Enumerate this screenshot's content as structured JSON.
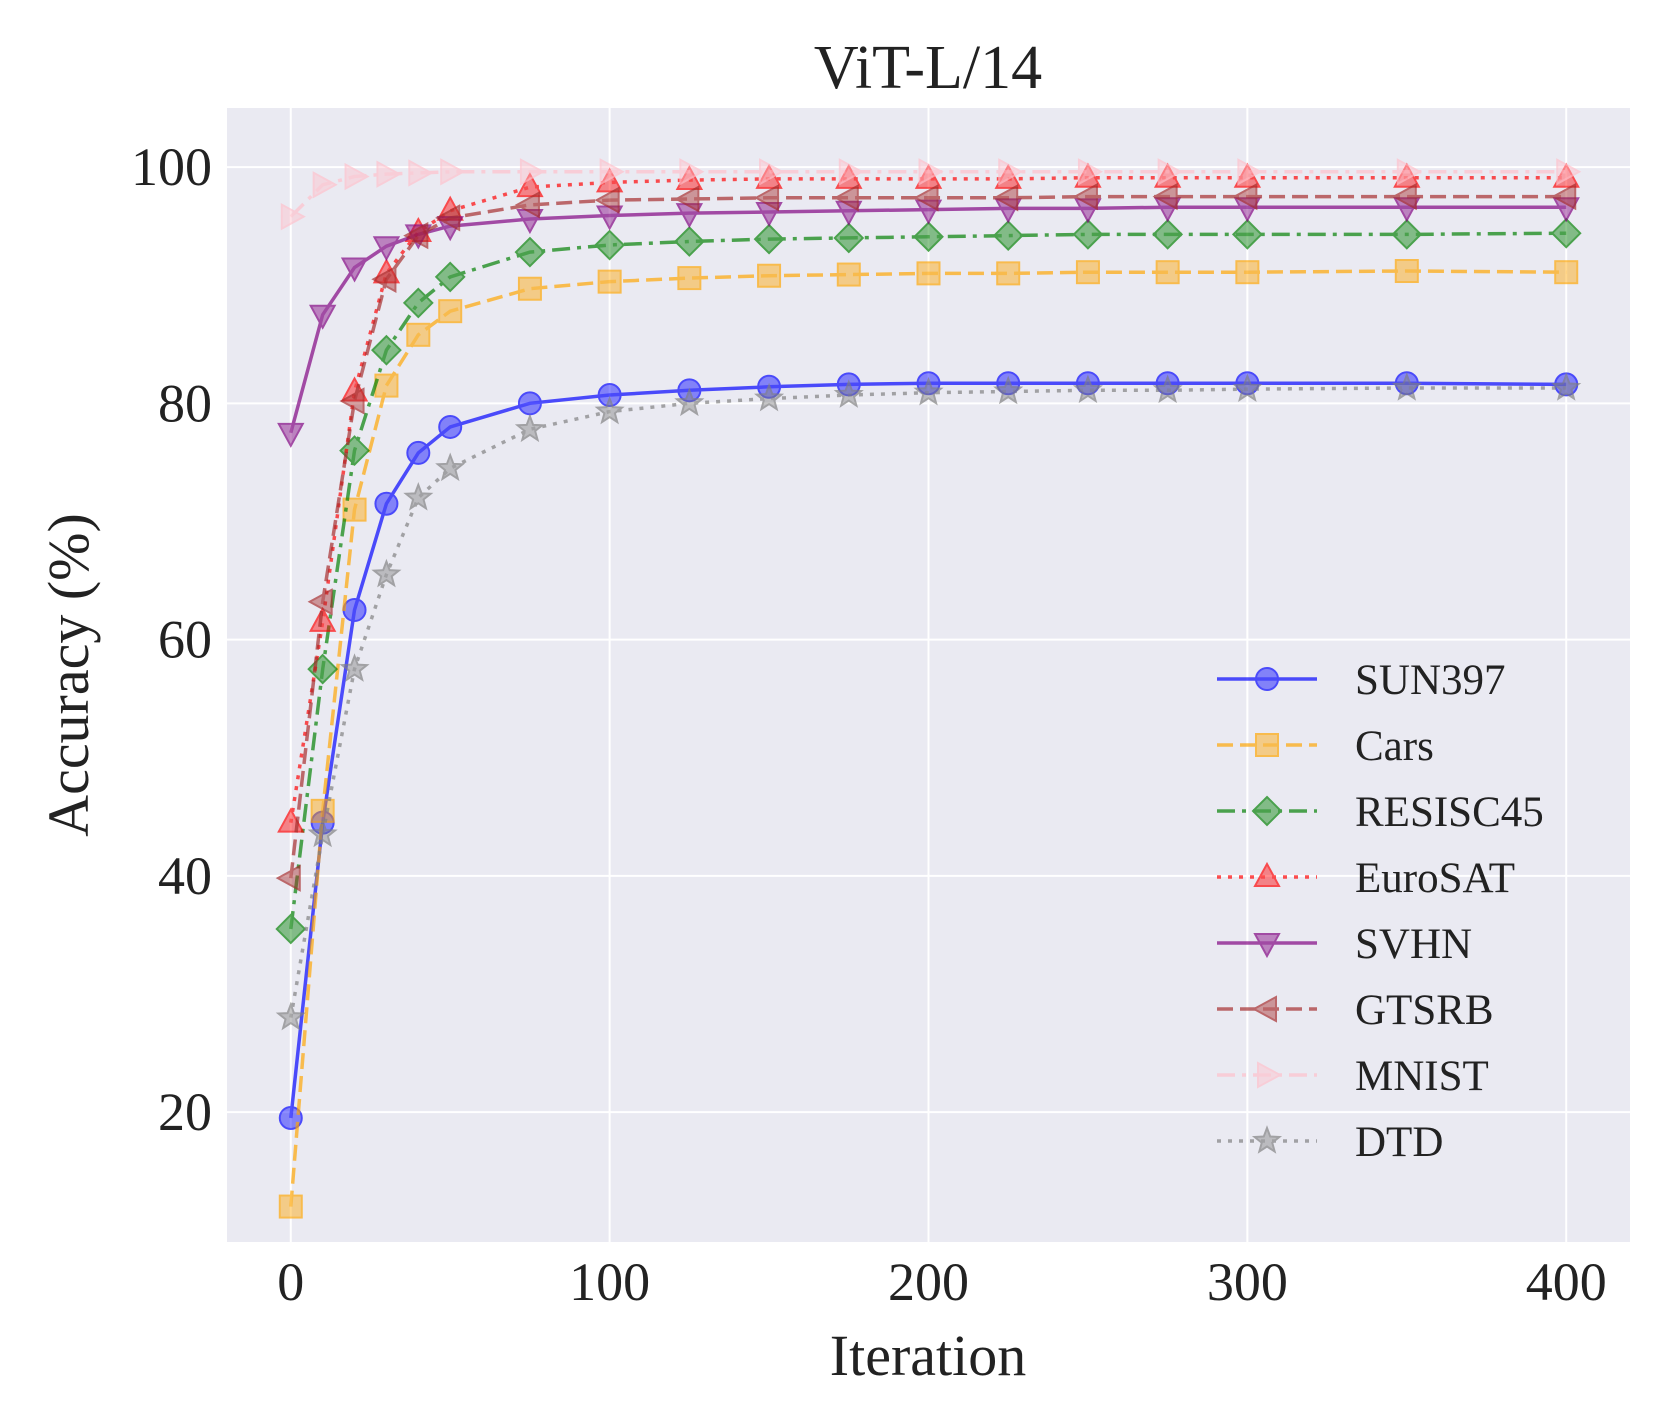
{
  "chart_data": {
    "type": "line",
    "title": "ViT-L/14",
    "xlabel": "Iteration",
    "ylabel": "Accuracy (%)",
    "xlim": [
      -20,
      420
    ],
    "ylim": [
      9,
      105
    ],
    "xticks": [
      0,
      100,
      200,
      300,
      400
    ],
    "yticks": [
      20,
      40,
      60,
      80,
      100
    ],
    "grid": true,
    "background": "#eaeaf2",
    "legend_position": "lower-right",
    "x": [
      0,
      10,
      20,
      30,
      40,
      50,
      75,
      100,
      125,
      150,
      175,
      200,
      225,
      250,
      275,
      300,
      350,
      400
    ],
    "series": [
      {
        "name": "SUN397",
        "color": "#0000ff",
        "linestyle": "solid",
        "marker": "circle",
        "values": [
          19.5,
          44.5,
          62.5,
          71.5,
          75.8,
          78.0,
          80.0,
          80.7,
          81.1,
          81.4,
          81.6,
          81.7,
          81.7,
          81.7,
          81.7,
          81.7,
          81.7,
          81.6
        ]
      },
      {
        "name": "Cars",
        "color": "#ffa500",
        "linestyle": "dashed",
        "marker": "square",
        "values": [
          12.0,
          45.5,
          71.0,
          81.5,
          85.8,
          87.8,
          89.7,
          90.3,
          90.6,
          90.8,
          90.9,
          91.0,
          91.0,
          91.1,
          91.1,
          91.1,
          91.2,
          91.1
        ]
      },
      {
        "name": "RESISC45",
        "color": "#008000",
        "linestyle": "dashdot",
        "marker": "diamond",
        "values": [
          35.5,
          57.5,
          76.0,
          84.5,
          88.5,
          90.7,
          92.8,
          93.4,
          93.7,
          93.9,
          94.0,
          94.1,
          94.2,
          94.3,
          94.3,
          94.3,
          94.3,
          94.4
        ]
      },
      {
        "name": "EuroSAT",
        "color": "#ff0000",
        "linestyle": "dotted",
        "marker": "triangle-up",
        "values": [
          44.5,
          61.5,
          81.0,
          91.0,
          94.5,
          96.3,
          98.3,
          98.7,
          98.9,
          99.0,
          99.0,
          99.0,
          99.0,
          99.1,
          99.1,
          99.1,
          99.1,
          99.1
        ]
      },
      {
        "name": "SVHN",
        "color": "#800080",
        "linestyle": "solid",
        "marker": "triangle-down",
        "values": [
          77.5,
          87.5,
          91.5,
          93.3,
          94.3,
          95.0,
          95.6,
          95.9,
          96.1,
          96.2,
          96.3,
          96.4,
          96.5,
          96.5,
          96.6,
          96.6,
          96.6,
          96.6
        ]
      },
      {
        "name": "GTSRB",
        "color": "#a52a2a",
        "linestyle": "dashed",
        "marker": "triangle-left",
        "values": [
          39.8,
          63.2,
          80.2,
          90.5,
          94.2,
          95.7,
          96.8,
          97.2,
          97.3,
          97.4,
          97.4,
          97.4,
          97.4,
          97.5,
          97.5,
          97.5,
          97.5,
          97.5
        ]
      },
      {
        "name": "MNIST",
        "color": "#ffc0cb",
        "linestyle": "dashdot",
        "marker": "triangle-right",
        "values": [
          95.8,
          98.5,
          99.2,
          99.4,
          99.5,
          99.6,
          99.6,
          99.6,
          99.6,
          99.6,
          99.6,
          99.6,
          99.6,
          99.6,
          99.6,
          99.6,
          99.6,
          99.6
        ]
      },
      {
        "name": "DTD",
        "color": "#808080",
        "linestyle": "dotted",
        "marker": "star",
        "values": [
          28.0,
          43.5,
          57.5,
          65.5,
          72.0,
          74.5,
          77.8,
          79.3,
          80.0,
          80.4,
          80.7,
          80.9,
          81.0,
          81.1,
          81.1,
          81.2,
          81.3,
          81.3
        ]
      }
    ]
  }
}
